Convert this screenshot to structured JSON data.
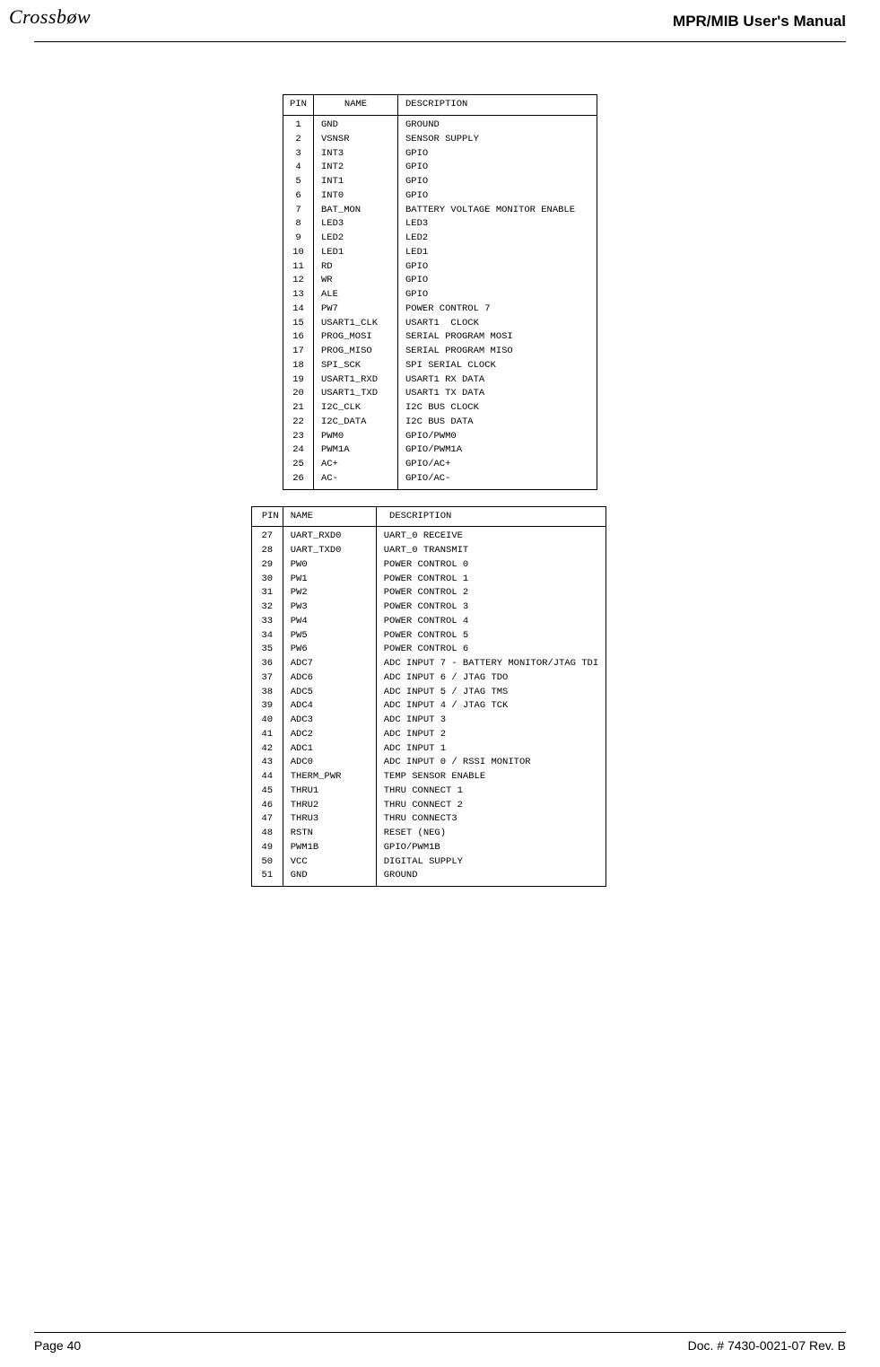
{
  "header": {
    "logo_text": "Crossbøw",
    "title": "MPR/MIB User's Manual"
  },
  "table1": {
    "columns": [
      "PIN",
      "NAME",
      "DESCRIPTION"
    ],
    "rows": [
      [
        "1",
        "GND",
        "GROUND"
      ],
      [
        "2",
        "VSNSR",
        "SENSOR SUPPLY"
      ],
      [
        "3",
        "INT3",
        "GPIO"
      ],
      [
        "4",
        "INT2",
        "GPIO"
      ],
      [
        "5",
        "INT1",
        "GPIO"
      ],
      [
        "6",
        "INT0",
        "GPIO"
      ],
      [
        "7",
        "BAT_MON",
        "BATTERY VOLTAGE MONITOR ENABLE"
      ],
      [
        "8",
        "LED3",
        "LED3"
      ],
      [
        "9",
        "LED2",
        "LED2"
      ],
      [
        "10",
        "LED1",
        "LED1"
      ],
      [
        "11",
        "RD",
        "GPIO"
      ],
      [
        "12",
        "WR",
        "GPIO"
      ],
      [
        "13",
        "ALE",
        "GPIO"
      ],
      [
        "14",
        "PW7",
        "POWER CONTROL 7"
      ],
      [
        "15",
        "USART1_CLK",
        "USART1  CLOCK"
      ],
      [
        "16",
        "PROG_MOSI",
        "SERIAL PROGRAM MOSI"
      ],
      [
        "17",
        "PROG_MISO",
        "SERIAL PROGRAM MISO"
      ],
      [
        "18",
        "SPI_SCK",
        "SPI SERIAL CLOCK"
      ],
      [
        "19",
        "USART1_RXD",
        "USART1 RX DATA"
      ],
      [
        "20",
        "USART1_TXD",
        "USART1 TX DATA"
      ],
      [
        "21",
        "I2C_CLK",
        "I2C BUS CLOCK"
      ],
      [
        "22",
        "I2C_DATA",
        "I2C BUS DATA"
      ],
      [
        "23",
        "PWM0",
        "GPIO/PWM0"
      ],
      [
        "24",
        "PWM1A",
        "GPIO/PWM1A"
      ],
      [
        "25",
        "AC+",
        "GPIO/AC+"
      ],
      [
        "26",
        "AC-",
        "GPIO/AC-"
      ]
    ]
  },
  "table2": {
    "columns": [
      "PIN",
      "NAME",
      " DESCRIPTION"
    ],
    "rows": [
      [
        "27",
        "UART_RXD0",
        "UART_0 RECEIVE"
      ],
      [
        "28",
        "UART_TXD0",
        "UART_0 TRANSMIT"
      ],
      [
        "29",
        "PW0",
        "POWER CONTROL 0"
      ],
      [
        "30",
        "PW1",
        "POWER CONTROL 1"
      ],
      [
        "31",
        "PW2",
        "POWER CONTROL 2"
      ],
      [
        "32",
        "PW3",
        "POWER CONTROL 3"
      ],
      [
        "33",
        "PW4",
        "POWER CONTROL 4"
      ],
      [
        "34",
        "PW5",
        "POWER CONTROL 5"
      ],
      [
        "35",
        "PW6",
        "POWER CONTROL 6"
      ],
      [
        "36",
        "ADC7",
        "ADC INPUT 7 - BATTERY MONITOR/JTAG TDI"
      ],
      [
        "37",
        "ADC6",
        "ADC INPUT 6 / JTAG TDO"
      ],
      [
        "38",
        "ADC5",
        "ADC INPUT 5 / JTAG TMS"
      ],
      [
        "39",
        "ADC4",
        "ADC INPUT 4 / JTAG TCK"
      ],
      [
        "40",
        "ADC3",
        "ADC INPUT 3"
      ],
      [
        "41",
        "ADC2",
        "ADC INPUT 2"
      ],
      [
        "42",
        "ADC1",
        "ADC INPUT 1"
      ],
      [
        "43",
        "ADC0",
        "ADC INPUT 0 / RSSI MONITOR"
      ],
      [
        "44",
        "THERM_PWR",
        "TEMP SENSOR ENABLE"
      ],
      [
        "45",
        "THRU1",
        "THRU CONNECT 1"
      ],
      [
        "46",
        "THRU2",
        "THRU CONNECT 2"
      ],
      [
        "47",
        "THRU3",
        "THRU CONNECT3"
      ],
      [
        "48",
        "RSTN",
        "RESET (NEG)"
      ],
      [
        "49",
        "PWM1B",
        "GPIO/PWM1B"
      ],
      [
        "50",
        "VCC",
        "DIGITAL SUPPLY"
      ],
      [
        "51",
        "GND",
        "GROUND"
      ]
    ]
  },
  "footer": {
    "left": "Page 40",
    "right": "Doc. # 7430-0021-07 Rev. B"
  }
}
